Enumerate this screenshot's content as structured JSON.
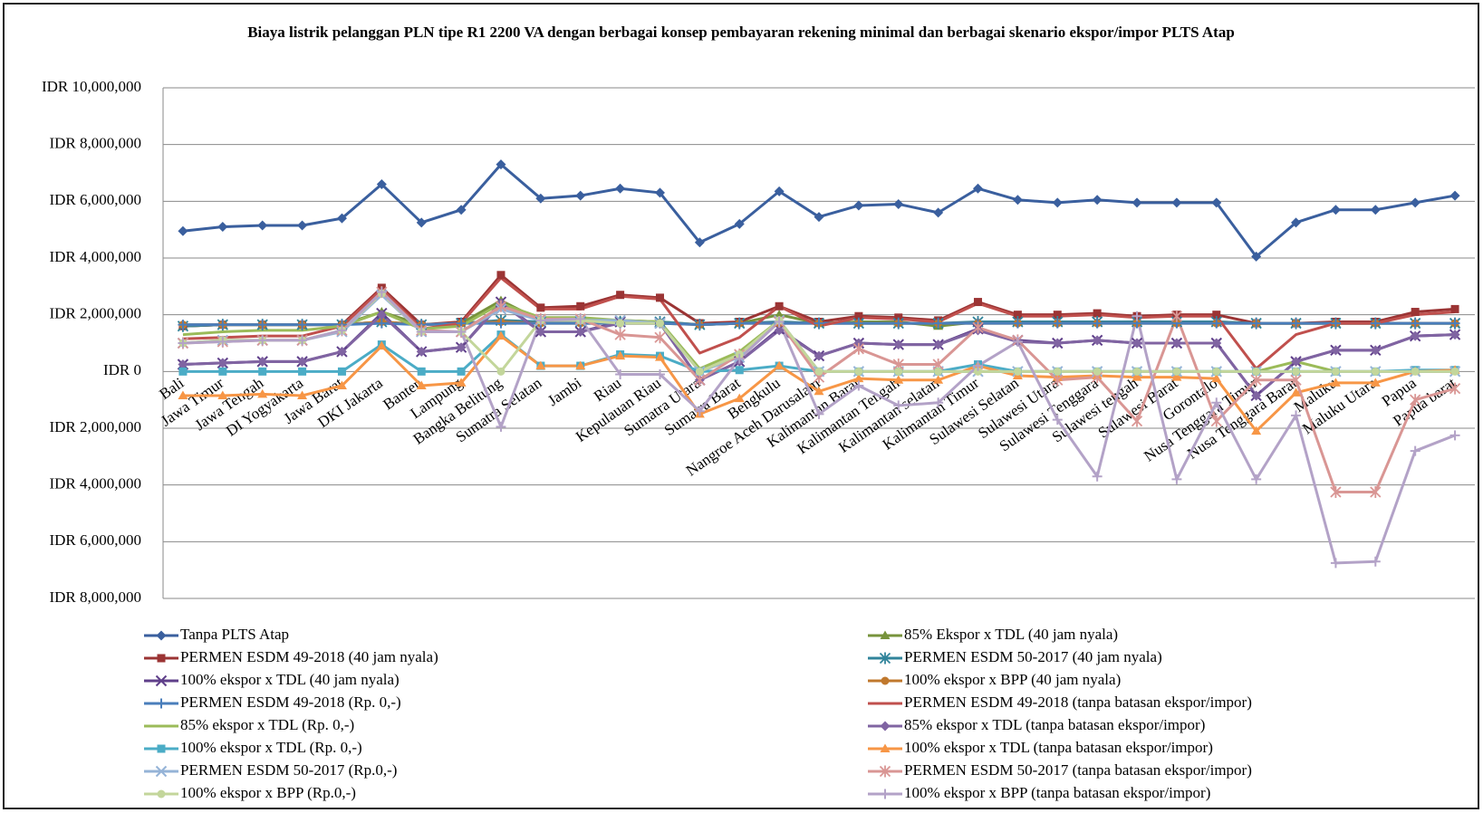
{
  "chart_data": {
    "type": "line",
    "title": "Biaya listrik pelanggan PLN tipe R1 2200 VA dengan berbagai konsep pembayaran rekening minimal dan berbagai skenario ekspor/impor PLTS Atap",
    "categories": [
      "Bali",
      "Jawa Timur",
      "Jawa Tengah",
      "DI Yogyakarta",
      "Jawa Barat",
      "DKI Jakarta",
      "Banten",
      "Lampung",
      "Bangka Belitung",
      "Sumatra Selatan",
      "Jambi",
      "Riau",
      "Kepulauan Riau",
      "Sumatra Utara",
      "Sumatra Barat",
      "Bengkulu",
      "Nangroe Aceh Darusalam",
      "Kalimantan Barat",
      "Kalimantan Tengah",
      "Kalimantan selatan",
      "Kalimantan Timur",
      "Sulawesi Selatan",
      "Sulawesi Utara",
      "Sulawesi Tenggara",
      "Sulawesi tengah",
      "Sulawesi Barat",
      "Gorontalo",
      "Nusa Tenggara Timur",
      "Nusa Tenggara Barat",
      "Maluku",
      "Maluku Utara",
      "Papua",
      "Papua barat"
    ],
    "ylim": [
      -8000000,
      10000000
    ],
    "yticks": [
      {
        "value": -8000000,
        "label": "IDR 8,000,000"
      },
      {
        "value": -6000000,
        "label": "IDR 6,000,000"
      },
      {
        "value": -4000000,
        "label": "IDR 4,000,000"
      },
      {
        "value": -2000000,
        "label": "IDR 2,000,000"
      },
      {
        "value": 0,
        "label": "IDR 0"
      },
      {
        "value": 2000000,
        "label": "IDR 2,000,000"
      },
      {
        "value": 4000000,
        "label": "IDR 4,000,000"
      },
      {
        "value": 6000000,
        "label": "IDR 6,000,000"
      },
      {
        "value": 8000000,
        "label": "IDR 8,000,000"
      },
      {
        "value": 10000000,
        "label": "IDR 10,000,000"
      }
    ],
    "negative_tick_color": "#e02020",
    "grid": true,
    "legend": "bottom",
    "series": [
      {
        "name": "Tanpa PLTS Atap",
        "color": "#3a5f9e",
        "marker": "diamond",
        "values": [
          4950000,
          5100000,
          5150000,
          5150000,
          5400000,
          6600000,
          5250000,
          5700000,
          7300000,
          6100000,
          6200000,
          6450000,
          6300000,
          4550000,
          5200000,
          6350000,
          5450000,
          5850000,
          5900000,
          5600000,
          6450000,
          6050000,
          5950000,
          6050000,
          5950000,
          5950000,
          5950000,
          4050000,
          5250000,
          5700000,
          5700000,
          5950000,
          6200000
        ]
      },
      {
        "name": "85% Ekspor x TDL (40 jam nyala)",
        "color": "#77933c",
        "marker": "triangle",
        "values": [
          1600000,
          1650000,
          1650000,
          1650000,
          1650000,
          2100000,
          1650000,
          1700000,
          2500000,
          1800000,
          1800000,
          1800000,
          1750000,
          1650000,
          1700000,
          2000000,
          1700000,
          1750000,
          1750000,
          1600000,
          1750000,
          1750000,
          1750000,
          1750000,
          1750000,
          1750000,
          1750000,
          1700000,
          1700000,
          1700000,
          1700000,
          1700000,
          1700000
        ]
      },
      {
        "name": "PERMEN ESDM 49-2018 (40 jam nyala)",
        "color": "#9b3434",
        "marker": "square",
        "values": [
          1600000,
          1650000,
          1650000,
          1650000,
          1650000,
          2950000,
          1650000,
          1750000,
          3400000,
          2250000,
          2300000,
          2700000,
          2600000,
          1700000,
          1750000,
          2300000,
          1750000,
          1950000,
          1900000,
          1800000,
          2450000,
          2000000,
          2000000,
          2050000,
          1950000,
          2000000,
          2000000,
          1700000,
          1700000,
          1750000,
          1750000,
          2100000,
          2200000
        ]
      },
      {
        "name": "PERMEN ESDM 50-2017 (40 jam nyala)",
        "color": "#31849b",
        "marker": "asterisk",
        "values": [
          1600000,
          1650000,
          1650000,
          1650000,
          1650000,
          1750000,
          1650000,
          1700000,
          1800000,
          1750000,
          1750000,
          1750000,
          1750000,
          1650000,
          1700000,
          1750000,
          1700000,
          1700000,
          1700000,
          1700000,
          1750000,
          1750000,
          1750000,
          1750000,
          1750000,
          1750000,
          1750000,
          1700000,
          1700000,
          1700000,
          1700000,
          1700000,
          1700000
        ]
      },
      {
        "name": "100% ekspor x TDL (40 jam nyala)",
        "color": "#5f3f8a",
        "marker": "x",
        "values": [
          250000,
          300000,
          350000,
          350000,
          700000,
          2050000,
          700000,
          850000,
          2450000,
          1400000,
          1400000,
          1750000,
          1700000,
          -300000,
          350000,
          1500000,
          550000,
          1000000,
          950000,
          950000,
          1500000,
          1100000,
          1000000,
          1100000,
          1000000,
          1000000,
          1000000,
          -850000,
          350000,
          750000,
          750000,
          1250000,
          1300000
        ]
      },
      {
        "name": "100% ekspor x BPP (40 jam nyala)",
        "color": "#c0782d",
        "marker": "circle",
        "values": [
          1650000,
          1650000,
          1650000,
          1650000,
          1650000,
          1750000,
          1650000,
          1700000,
          1750000,
          1700000,
          1700000,
          1700000,
          1700000,
          1650000,
          1700000,
          1700000,
          1700000,
          1700000,
          1700000,
          1700000,
          1700000,
          1700000,
          1700000,
          1700000,
          1700000,
          1700000,
          1700000,
          1700000,
          1700000,
          1700000,
          1700000,
          1700000,
          1700000
        ]
      },
      {
        "name": "PERMEN ESDM 49-2018 (Rp. 0,-)",
        "color": "#4a7ebb",
        "marker": "plus",
        "values": [
          1650000,
          1650000,
          1650000,
          1650000,
          1650000,
          1700000,
          1650000,
          1700000,
          1700000,
          1700000,
          1700000,
          1700000,
          1700000,
          1650000,
          1700000,
          1700000,
          1700000,
          1700000,
          1700000,
          1700000,
          1700000,
          1700000,
          1700000,
          1700000,
          1700000,
          1700000,
          1700000,
          1700000,
          1700000,
          1700000,
          1700000,
          1700000,
          1700000
        ]
      },
      {
        "name": "PERMEN ESDM 49-2018 (tanpa batasan ekspor/impor)",
        "color": "#c0504d",
        "marker": "none",
        "values": [
          1150000,
          1200000,
          1250000,
          1250000,
          1600000,
          2900000,
          1500000,
          1700000,
          3300000,
          2200000,
          2200000,
          2650000,
          2550000,
          650000,
          1200000,
          2300000,
          1600000,
          1900000,
          1850000,
          1750000,
          2400000,
          1950000,
          1950000,
          2000000,
          1900000,
          1950000,
          1950000,
          100000,
          1300000,
          1700000,
          1700000,
          2000000,
          2100000
        ]
      },
      {
        "name": "85% ekspor x TDL (Rp. 0,-)",
        "color": "#9bbb59",
        "marker": "none",
        "values": [
          1300000,
          1400000,
          1450000,
          1450000,
          1600000,
          2100000,
          1500000,
          1600000,
          2400000,
          1900000,
          1900000,
          1800000,
          1750000,
          100000,
          700000,
          1800000,
          0,
          0,
          0,
          0,
          0,
          0,
          0,
          0,
          0,
          0,
          0,
          0,
          350000,
          0,
          0,
          0,
          0
        ]
      },
      {
        "name": "85% ekspor x TDL (tanpa batasan ekspor/impor)",
        "color": "#8064a2",
        "marker": "diamond",
        "values": [
          250000,
          300000,
          350000,
          350000,
          700000,
          2000000,
          700000,
          850000,
          2400000,
          1400000,
          1400000,
          1700000,
          1700000,
          -300000,
          350000,
          1450000,
          550000,
          1000000,
          950000,
          950000,
          1450000,
          1050000,
          1000000,
          1100000,
          1000000,
          1000000,
          1000000,
          -850000,
          350000,
          750000,
          750000,
          1250000,
          1300000
        ]
      },
      {
        "name": "100% ekspor x TDL (Rp. 0,-)",
        "color": "#4bacc6",
        "marker": "square",
        "values": [
          0,
          0,
          0,
          0,
          0,
          950000,
          0,
          0,
          1300000,
          200000,
          200000,
          600000,
          550000,
          0,
          50000,
          200000,
          0,
          0,
          0,
          0,
          250000,
          0,
          0,
          0,
          0,
          0,
          0,
          0,
          0,
          0,
          0,
          50000,
          50000
        ]
      },
      {
        "name": "100% ekspor x TDL (tanpa batasan ekspor/impor)",
        "color": "#f79646",
        "marker": "triangle",
        "values": [
          -850000,
          -850000,
          -800000,
          -850000,
          -500000,
          900000,
          -500000,
          -400000,
          1250000,
          200000,
          200000,
          550000,
          500000,
          -1500000,
          -950000,
          200000,
          -700000,
          -250000,
          -300000,
          -300000,
          200000,
          -150000,
          -200000,
          -150000,
          -200000,
          -200000,
          -250000,
          -2100000,
          -750000,
          -400000,
          -400000,
          0,
          50000
        ]
      },
      {
        "name": "PERMEN ESDM 50-2017 (Rp.0,-)",
        "color": "#95b3d7",
        "marker": "x",
        "values": [
          1000000,
          1100000,
          1100000,
          1100000,
          1400000,
          2700000,
          1400000,
          1400000,
          2200000,
          1800000,
          1800000,
          1800000,
          1700000,
          0,
          500000,
          1800000,
          0,
          0,
          0,
          0,
          0,
          0,
          0,
          0,
          0,
          0,
          0,
          0,
          0,
          0,
          0,
          0,
          0
        ]
      },
      {
        "name": "PERMEN ESDM 50-2017 (tanpa batasan ekspor/impor)",
        "color": "#d99694",
        "marker": "asterisk",
        "values": [
          1000000,
          1050000,
          1100000,
          1100000,
          1450000,
          2800000,
          1450000,
          1400000,
          2300000,
          1850000,
          1850000,
          1300000,
          1200000,
          -300000,
          600000,
          1750000,
          -200000,
          800000,
          250000,
          250000,
          1550000,
          1100000,
          -300000,
          -200000,
          -1750000,
          1950000,
          -1750000,
          -300000,
          -300000,
          -4250000,
          -4250000,
          -1000000,
          -600000
        ]
      },
      {
        "name": "100% ekspor x BPP (Rp.0,-)",
        "color": "#c3d69b",
        "marker": "circle",
        "values": [
          1000000,
          1100000,
          1100000,
          1100000,
          1450000,
          2750000,
          1400000,
          1400000,
          0,
          1800000,
          1800000,
          1700000,
          1700000,
          0,
          600000,
          1800000,
          0,
          0,
          0,
          0,
          0,
          0,
          0,
          0,
          0,
          0,
          0,
          0,
          0,
          0,
          0,
          0,
          0
        ]
      },
      {
        "name": "100% ekspor x BPP (tanpa batasan ekspor/impor)",
        "color": "#b3a2c7",
        "marker": "plus",
        "values": [
          1000000,
          1050000,
          1100000,
          1100000,
          1450000,
          2800000,
          1400000,
          1400000,
          -1950000,
          1800000,
          1850000,
          -100000,
          -100000,
          -1400000,
          450000,
          1750000,
          -1500000,
          -500000,
          -1200000,
          -1100000,
          200000,
          1050000,
          -1700000,
          -3700000,
          1950000,
          -3800000,
          -1100000,
          -3800000,
          -1550000,
          -6750000,
          -6700000,
          -2800000,
          -2250000
        ]
      }
    ]
  }
}
